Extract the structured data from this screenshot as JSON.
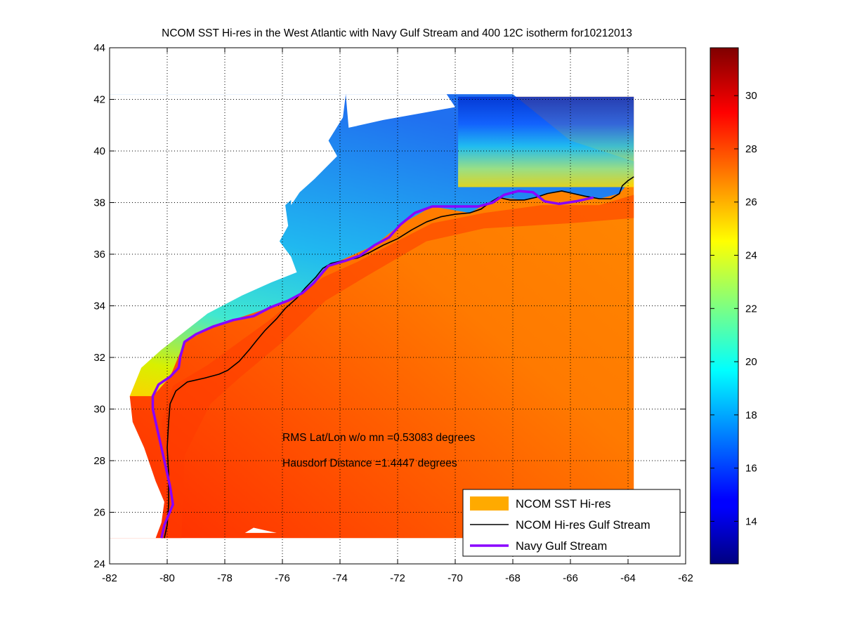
{
  "chart_data": {
    "type": "heatmap",
    "title": "NCOM SST Hi-res in the West Atlantic with Navy Gulf Stream and 400 12C isotherm for10212013",
    "xlabel": "",
    "ylabel": "",
    "xlim": [
      -82,
      -62
    ],
    "ylim": [
      24,
      44
    ],
    "x_ticks": [
      -82,
      -80,
      -78,
      -76,
      -74,
      -72,
      -70,
      -68,
      -66,
      -64,
      -62
    ],
    "y_ticks": [
      24,
      26,
      28,
      30,
      32,
      34,
      36,
      38,
      40,
      42,
      44
    ],
    "grid": true,
    "colorbar": {
      "colormap": "jet",
      "range": [
        12.4,
        31.8
      ],
      "ticks": [
        14,
        16,
        18,
        20,
        22,
        24,
        26,
        28,
        30
      ]
    },
    "data_extent": {
      "lon": [
        -82,
        -63.8
      ],
      "lat": [
        25,
        42.1
      ]
    },
    "annotations": [
      "RMS Lat/Lon w/o mn =0.53083 degrees",
      "Hausdorf Distance =1.4447 degrees"
    ],
    "legend": {
      "position": "bottom-right",
      "entries": [
        {
          "label": "NCOM SST Hi-res",
          "color": "#ffaa00"
        },
        {
          "label": "NCOM Hi-res Gulf Stream",
          "color": "#000000"
        },
        {
          "label": "Navy Gulf Stream",
          "color": "#8a00ff"
        }
      ]
    },
    "series": [
      {
        "name": "NCOM Hi-res Gulf Stream",
        "color": "#000000",
        "points": [
          [
            -80.1,
            25.0
          ],
          [
            -80.0,
            25.5
          ],
          [
            -79.95,
            26.3
          ],
          [
            -79.95,
            27.5
          ],
          [
            -80.0,
            28.5
          ],
          [
            -79.95,
            29.5
          ],
          [
            -79.9,
            30.2
          ],
          [
            -79.7,
            30.7
          ],
          [
            -79.3,
            31.05
          ],
          [
            -78.7,
            31.2
          ],
          [
            -78.2,
            31.35
          ],
          [
            -77.9,
            31.5
          ],
          [
            -77.5,
            31.85
          ],
          [
            -77.15,
            32.3
          ],
          [
            -76.9,
            32.65
          ],
          [
            -76.6,
            33.05
          ],
          [
            -76.2,
            33.5
          ],
          [
            -75.9,
            33.9
          ],
          [
            -75.5,
            34.3
          ],
          [
            -75.2,
            34.7
          ],
          [
            -74.85,
            35.1
          ],
          [
            -74.6,
            35.45
          ],
          [
            -74.3,
            35.65
          ],
          [
            -73.9,
            35.75
          ],
          [
            -73.4,
            35.85
          ],
          [
            -73.0,
            36.05
          ],
          [
            -72.5,
            36.35
          ],
          [
            -72.0,
            36.6
          ],
          [
            -71.5,
            36.95
          ],
          [
            -71.0,
            37.25
          ],
          [
            -70.5,
            37.45
          ],
          [
            -70.0,
            37.55
          ],
          [
            -69.5,
            37.6
          ],
          [
            -69.1,
            37.75
          ],
          [
            -68.8,
            38.0
          ],
          [
            -68.5,
            38.2
          ],
          [
            -68.1,
            38.1
          ],
          [
            -67.6,
            38.1
          ],
          [
            -67.2,
            38.2
          ],
          [
            -66.8,
            38.35
          ],
          [
            -66.3,
            38.45
          ],
          [
            -65.9,
            38.35
          ],
          [
            -65.5,
            38.25
          ],
          [
            -65.0,
            38.15
          ],
          [
            -64.6,
            38.15
          ],
          [
            -64.3,
            38.35
          ],
          [
            -64.2,
            38.65
          ],
          [
            -64.0,
            38.85
          ],
          [
            -63.8,
            39.0
          ]
        ]
      },
      {
        "name": "Navy Gulf Stream",
        "color": "#8a00ff",
        "points": [
          [
            -80.2,
            25.0
          ],
          [
            -80.1,
            25.5
          ],
          [
            -79.8,
            26.3
          ],
          [
            -79.9,
            27.0
          ],
          [
            -80.1,
            28.0
          ],
          [
            -80.3,
            29.0
          ],
          [
            -80.5,
            30.0
          ],
          [
            -80.5,
            30.5
          ],
          [
            -80.3,
            30.95
          ],
          [
            -79.9,
            31.25
          ],
          [
            -79.6,
            31.6
          ],
          [
            -79.55,
            32.0
          ],
          [
            -79.4,
            32.6
          ],
          [
            -79.0,
            32.9
          ],
          [
            -78.4,
            33.2
          ],
          [
            -77.7,
            33.45
          ],
          [
            -77.0,
            33.6
          ],
          [
            -76.4,
            33.95
          ],
          [
            -75.8,
            34.2
          ],
          [
            -75.3,
            34.5
          ],
          [
            -74.9,
            34.9
          ],
          [
            -74.6,
            35.3
          ],
          [
            -74.4,
            35.55
          ],
          [
            -73.8,
            35.75
          ],
          [
            -73.3,
            35.95
          ],
          [
            -72.8,
            36.35
          ],
          [
            -72.3,
            36.65
          ],
          [
            -71.9,
            37.15
          ],
          [
            -71.4,
            37.6
          ],
          [
            -70.8,
            37.85
          ],
          [
            -70.0,
            37.85
          ],
          [
            -69.2,
            37.85
          ],
          [
            -68.7,
            38.0
          ],
          [
            -68.3,
            38.3
          ],
          [
            -67.8,
            38.45
          ],
          [
            -67.3,
            38.4
          ],
          [
            -66.9,
            38.05
          ],
          [
            -66.4,
            37.95
          ],
          [
            -65.8,
            38.05
          ],
          [
            -65.2,
            38.2
          ]
        ]
      }
    ]
  }
}
